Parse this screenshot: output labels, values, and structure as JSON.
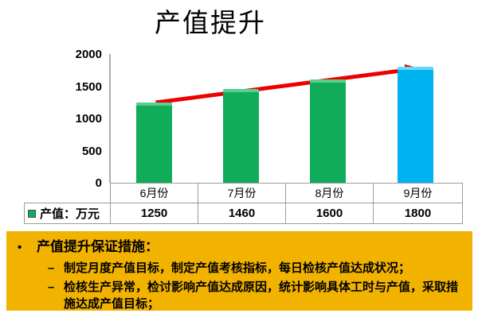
{
  "title": "产值提升",
  "chart_data": {
    "type": "bar",
    "title": "产值提升",
    "categories": [
      "6月份",
      "7月份",
      "8月份",
      "9月份"
    ],
    "series": [
      {
        "name": "产值：万元",
        "values": [
          1250,
          1460,
          1600,
          1800
        ]
      }
    ],
    "ylim": [
      0,
      2000
    ],
    "yticks": [
      2000,
      1500,
      1000,
      500,
      0
    ],
    "grid": false,
    "legend_position": "table-left",
    "bar_colors": [
      "#10ac5a",
      "#10ac5a",
      "#10ac5a",
      "#00b3f0"
    ],
    "bar_cap_colors": [
      "#5bcd8e",
      "#5bcd8e",
      "#5bcd8e",
      "#63d9f7"
    ],
    "trend_arrow_color": "#ec0000"
  },
  "notes": {
    "panel_color": "#f1b200",
    "bullet_marker": "•",
    "dash_marker": "–",
    "heading": "产值提升保证措施：",
    "items": [
      "制定月度产值目标，制定产值考核指标，每日检核产值达成状况；",
      "检核生产异常，检讨影响产值达成原因，统计影响具体工时与产值，采取措施达成产值目标；"
    ]
  }
}
